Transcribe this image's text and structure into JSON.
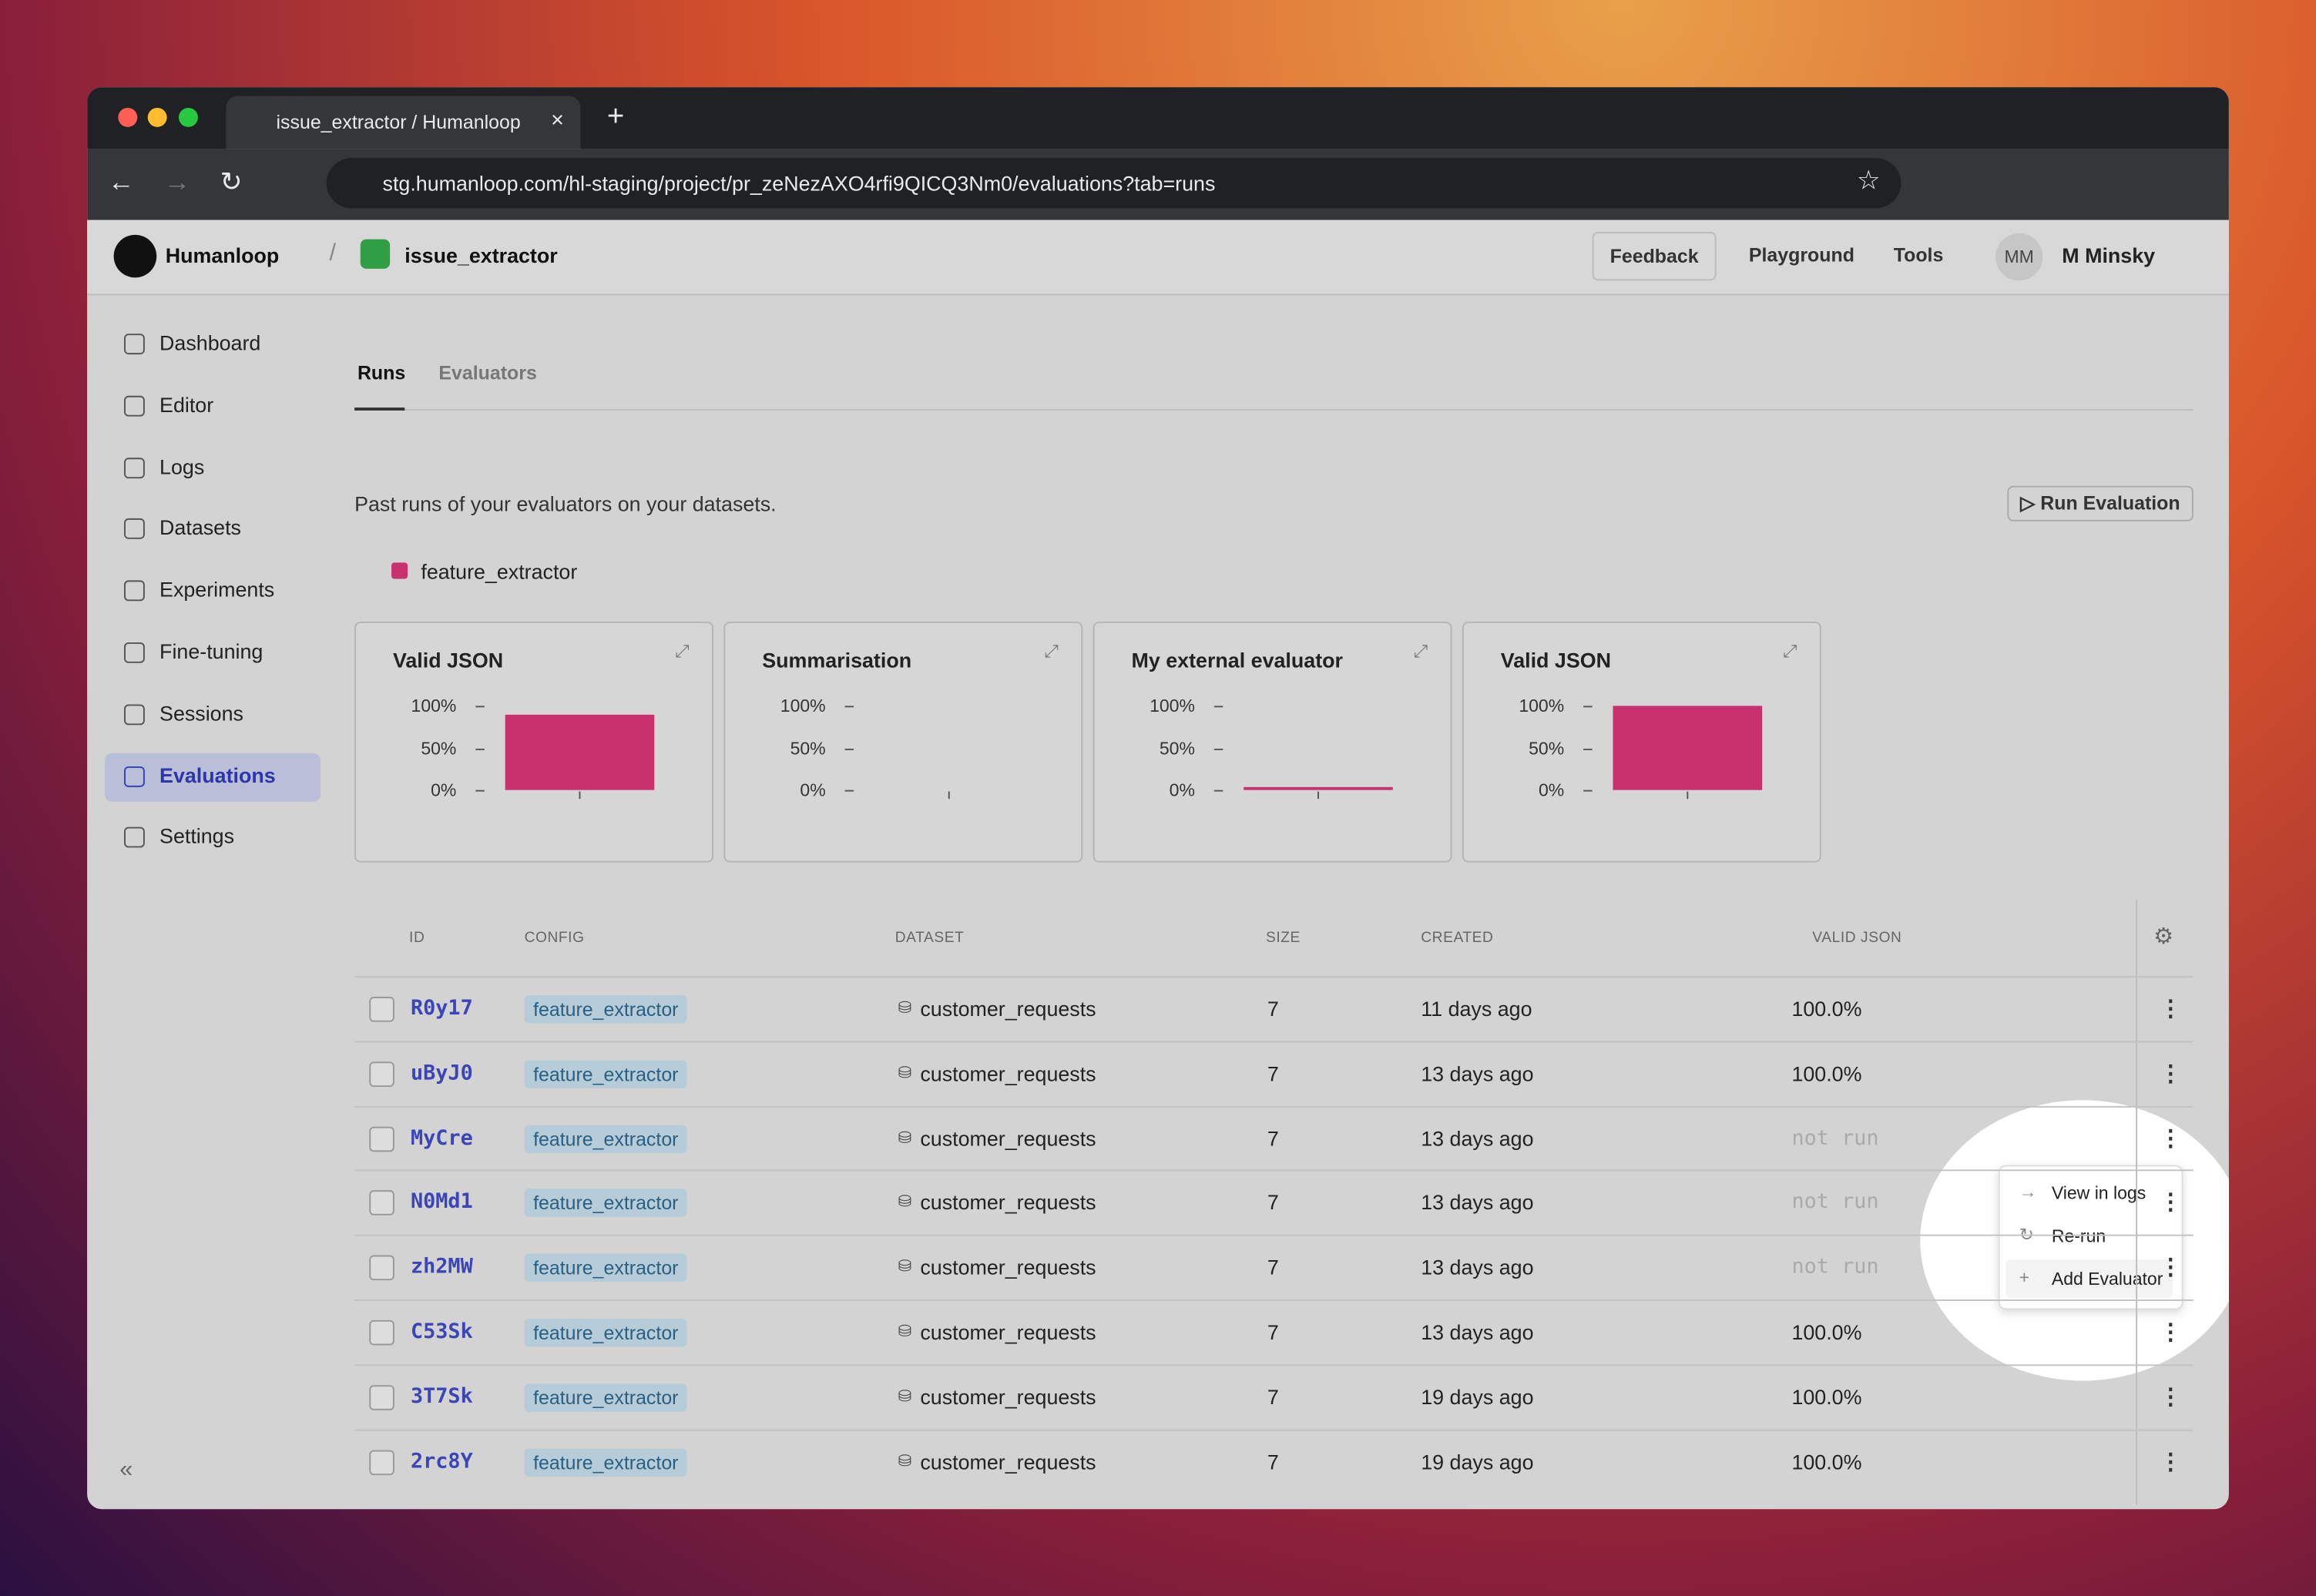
{
  "browser": {
    "tab_title": "issue_extractor / Humanloop",
    "url": "stg.humanloop.com/hl-staging/project/pr_zeNezAXO4rfi9QICQ3Nm0/evaluations?tab=runs"
  },
  "header": {
    "org": "Humanloop",
    "project": "issue_extractor",
    "buttons": [
      "Feedback",
      "Playground",
      "Tools"
    ],
    "user_initials": "MM",
    "user_name": "M Minsky"
  },
  "sidebar": {
    "items": [
      "Dashboard",
      "Editor",
      "Logs",
      "Datasets",
      "Experiments",
      "Fine-tuning",
      "Sessions",
      "Evaluations",
      "Settings"
    ],
    "active": 7
  },
  "tabs": {
    "items": [
      "Runs",
      "Evaluators"
    ],
    "active": 0
  },
  "description": "Past runs of your evaluators on your datasets.",
  "run_button": "Run Evaluation",
  "legend": {
    "name": "feature_extractor",
    "color": "#c9306e"
  },
  "charts": {
    "ylim": [
      0,
      100
    ],
    "yticks": [
      {
        "value": 100,
        "label": "100%"
      },
      {
        "value": 50,
        "label": "50%"
      },
      {
        "value": 0,
        "label": "0%"
      }
    ],
    "items": [
      {
        "title": "Valid JSON",
        "value": 90
      },
      {
        "title": "Summarisation",
        "value": null
      },
      {
        "title": "My external evaluator",
        "value": 0
      },
      {
        "title": "Valid JSON",
        "value": 100
      }
    ]
  },
  "table": {
    "columns": [
      "ID",
      "CONFIG",
      "DATASET",
      "SIZE",
      "CREATED",
      "VALID JSON"
    ],
    "rows": [
      [
        "R0y17",
        "feature_extractor",
        "customer_requests",
        7,
        "11 days ago",
        "100.0%"
      ],
      [
        "uByJ0",
        "feature_extractor",
        "customer_requests",
        7,
        "13 days ago",
        "100.0%"
      ],
      [
        "MyCre",
        "feature_extractor",
        "customer_requests",
        7,
        "13 days ago",
        "not run"
      ],
      [
        "N0Md1",
        "feature_extractor",
        "customer_requests",
        7,
        "13 days ago",
        "not run"
      ],
      [
        "zh2MW",
        "feature_extractor",
        "customer_requests",
        7,
        "13 days ago",
        "not run"
      ],
      [
        "C53Sk",
        "feature_extractor",
        "customer_requests",
        7,
        "13 days ago",
        "100.0%"
      ],
      [
        "3T7Sk",
        "feature_extractor",
        "customer_requests",
        7,
        "19 days ago",
        "100.0%"
      ],
      [
        "2rc8Y",
        "feature_extractor",
        "customer_requests",
        7,
        "19 days ago",
        "100.0%"
      ]
    ]
  },
  "menu": [
    "View in logs",
    "Re-run",
    "Add Evaluator"
  ]
}
